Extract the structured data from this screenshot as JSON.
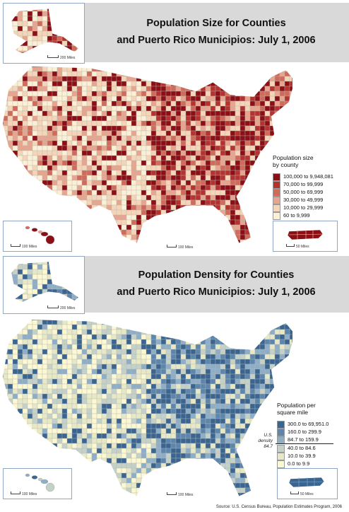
{
  "maps": [
    {
      "title_line1": "Population Size for Counties",
      "title_line2": "and Puerto Rico Municipios: July 1, 2006",
      "legend_title_line1": "Population size",
      "legend_title_line2": "by county",
      "legend": [
        {
          "label": "100,000 to 9,948,081",
          "color": "#8b0f14"
        },
        {
          "label": "70,000 to 99,999",
          "color": "#b5332e"
        },
        {
          "label": "50,000 to 69,999",
          "color": "#d06a59"
        },
        {
          "label": "30,000 to 49,999",
          "color": "#e7a58e"
        },
        {
          "label": "10,000 to 29,999",
          "color": "#f4d5b7"
        },
        {
          "label": "60 to 9,999",
          "color": "#fbf0d6"
        }
      ],
      "alaska_scale": "200 Miles",
      "hawaii_scale": "100 Miles",
      "conus_scale": "100 Miles",
      "pr_scale": "50 Miles"
    },
    {
      "title_line1": "Population Density for Counties",
      "title_line2": "and Puerto Rico Municipios: July 1, 2006",
      "legend_title_line1": "Population per",
      "legend_title_line2": "square mile",
      "legend": [
        {
          "label": "300.0 to 69,951.0",
          "color": "#3a6590"
        },
        {
          "label": "160.0 to 299.9",
          "color": "#5d86ad"
        },
        {
          "label": "84.7 to 159.9",
          "color": "#8eaec8"
        },
        {
          "label": "40.0 to 84.6",
          "color": "#c3d1c8"
        },
        {
          "label": "10.0 to 39.9",
          "color": "#e6e8c6"
        },
        {
          "label": "0.0 to 9.9",
          "color": "#fbf8d2"
        }
      ],
      "us_density_line1": "U.S.",
      "us_density_line2": "density",
      "us_density_value": "84.7",
      "alaska_scale": "200 Miles",
      "hawaii_scale": "100 Miles",
      "conus_scale": "100 Miles",
      "pr_scale": "50 Miles"
    }
  ],
  "source": "Source:  U.S. Census Bureau, Population Estimates Program, 2006"
}
